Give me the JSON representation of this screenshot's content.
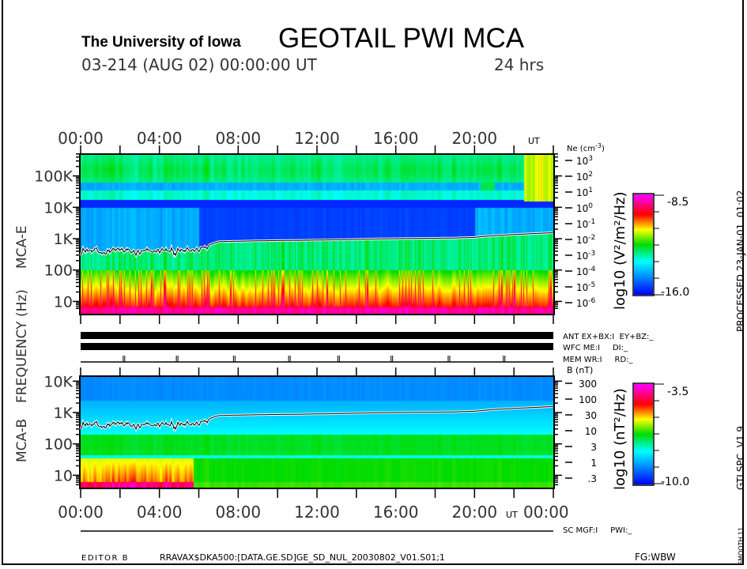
{
  "header": {
    "institution": "The University of Iowa",
    "title": "GEOTAIL PWI MCA",
    "date_line": "03-214 (AUG 02) 00:00:00 UT",
    "duration": "24 hrs"
  },
  "axes": {
    "time_labels": [
      "00:00",
      "04:00",
      "08:00",
      "12:00",
      "16:00",
      "20:00",
      "00:00"
    ],
    "time_unit": "UT",
    "freq_label": "FREQUENCY (Hz)",
    "mca_e_label": "MCA-E",
    "mca_b_label": "MCA-B",
    "e_freq_ticks": [
      "100K",
      "10K",
      "1K",
      "100",
      "10"
    ],
    "b_freq_ticks": [
      "10K",
      "1K",
      "100",
      "10"
    ],
    "ne_title": "Ne (cm",
    "ne_title_exp": "-3",
    "ne_title_close": ")",
    "ne_ticks": [
      {
        "b": "10",
        "e": "3"
      },
      {
        "b": "10",
        "e": "2"
      },
      {
        "b": "10",
        "e": "1"
      },
      {
        "b": "10",
        "e": "0"
      },
      {
        "b": "10",
        "e": "-1"
      },
      {
        "b": "10",
        "e": "-2"
      },
      {
        "b": "10",
        "e": "-3"
      },
      {
        "b": "10",
        "e": "-4"
      },
      {
        "b": "10",
        "e": "-5"
      },
      {
        "b": "10",
        "e": "-6"
      }
    ],
    "b_title": "B (nT)",
    "b_ticks": [
      "300",
      "100",
      "30",
      "10",
      "3",
      "1",
      ".3"
    ]
  },
  "colorbars": {
    "e": {
      "label": "log10 (V²/m²/Hz)",
      "max": "-8.5",
      "min": "-16.0"
    },
    "b": {
      "label": "log10 (nT²/Hz)",
      "max": "-3.5",
      "min": "-10.0"
    }
  },
  "status": {
    "ant": "ANT EX+BX:I  EY+BZ:_",
    "wfc": "WFC ME:I     DI:_",
    "mem": "MEM WR:I     RD:_",
    "sc": "SC MGF:I     PWI:_"
  },
  "side": {
    "processed": "PROCESSED 23-JAN-01  01:02",
    "version": "GTLSPC  V1.9",
    "smooth": "SMOOTH 11"
  },
  "footer": {
    "editor": "EDITOR B",
    "path": "RRAVAX$DKA500:[DATA.GE.SD]GE_SD_NUL_20030802_V01.S01;1",
    "fg": "FG:WBW"
  },
  "chart_data": {
    "type": "heatmap",
    "panels": [
      {
        "name": "MCA-E",
        "ylabel": "FREQUENCY (Hz)",
        "yscale": "log",
        "ylim_hz": [
          5,
          500000
        ],
        "right_axis": "Ne (cm-3)",
        "colorbar_range": [
          -16.0,
          -8.5
        ],
        "colorbar_unit": "log10 (V2/m2/Hz)"
      },
      {
        "name": "MCA-B",
        "ylabel": "FREQUENCY (Hz)",
        "yscale": "log",
        "ylim_hz": [
          4,
          14000
        ],
        "right_axis": "B (nT)",
        "colorbar_range": [
          -10.0,
          -3.5
        ],
        "colorbar_unit": "log10 (nT2/Hz)"
      }
    ],
    "xlim_hours_ut": [
      0,
      24
    ],
    "overlay_line_hz_hourly": [
      420,
      380,
      430,
      350,
      420,
      380,
      450,
      800,
      830,
      850,
      870,
      880,
      900,
      920,
      950,
      980,
      1000,
      1020,
      1030,
      1050,
      1100,
      1250,
      1350,
      1450,
      1550
    ],
    "colormap": [
      "#0000ff",
      "#00a0ff",
      "#00ffff",
      "#00dc00",
      "#ffff00",
      "#ff0000",
      "#ff00ff"
    ],
    "mem_marks_hours": [
      2.2,
      4.9,
      7.8,
      10.6,
      13.1,
      15.8,
      18.7,
      21.5
    ]
  }
}
